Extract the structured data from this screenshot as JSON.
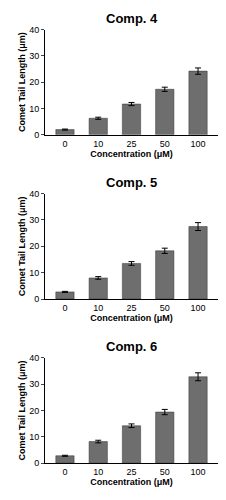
{
  "chart_data": [
    {
      "type": "bar",
      "title": "Comp. 4",
      "categories": [
        "0",
        "10",
        "25",
        "50",
        "100"
      ],
      "values": [
        2.0,
        6.3,
        11.7,
        17.3,
        24.2
      ],
      "errors": [
        0.2,
        0.4,
        0.6,
        0.8,
        1.2
      ],
      "xlabel": "Concentration (μM)",
      "ylabel": "Comet Tail Length (μm)",
      "color": "#6e6e6e",
      "ylim": [
        0,
        40
      ],
      "yticks": [
        0,
        10,
        20,
        30,
        40
      ],
      "grid": false
    },
    {
      "type": "bar",
      "title": "Comp. 5",
      "categories": [
        "0",
        "10",
        "25",
        "50",
        "100"
      ],
      "values": [
        2.7,
        8.0,
        13.5,
        18.3,
        27.5
      ],
      "errors": [
        0.2,
        0.5,
        0.7,
        1.0,
        1.5
      ],
      "xlabel": "Concentration (μM)",
      "ylabel": "Comet Tail Length (μm)",
      "color": "#6e6e6e",
      "ylim": [
        0,
        40
      ],
      "yticks": [
        0,
        10,
        20,
        30,
        40
      ],
      "grid": false
    },
    {
      "type": "bar",
      "title": "Comp. 6",
      "categories": [
        "0",
        "10",
        "25",
        "50",
        "100"
      ],
      "values": [
        2.8,
        8.2,
        14.2,
        19.4,
        32.8
      ],
      "errors": [
        0.2,
        0.5,
        0.7,
        1.0,
        1.5
      ],
      "xlabel": "Concentration (μM)",
      "ylabel": "Comet Tail Length (μm)",
      "color": "#6e6e6e",
      "ylim": [
        0,
        40
      ],
      "yticks": [
        0,
        10,
        20,
        30,
        40
      ],
      "grid": false
    }
  ]
}
